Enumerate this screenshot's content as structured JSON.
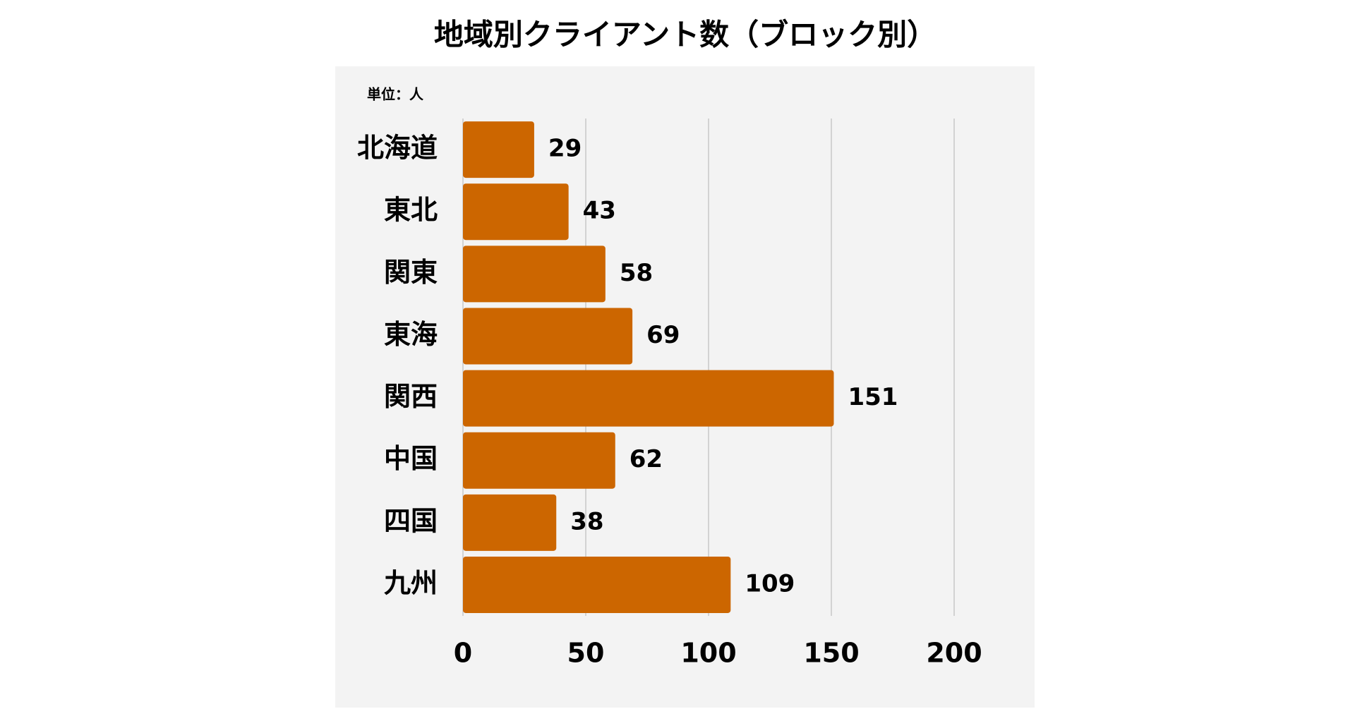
{
  "chart_data": {
    "type": "bar",
    "orientation": "horizontal",
    "title": "地域別クライアント数（ブロック別）",
    "unit_label": "単位：人",
    "categories": [
      "北海道",
      "東北",
      "関東",
      "東海",
      "関西",
      "中国",
      "四国",
      "九州"
    ],
    "values": [
      29,
      43,
      58,
      69,
      151,
      62,
      38,
      109
    ],
    "color": "#cc6600",
    "xlim": [
      0,
      200
    ],
    "xticks": [
      0,
      50,
      100,
      150,
      200
    ],
    "grid": true
  }
}
